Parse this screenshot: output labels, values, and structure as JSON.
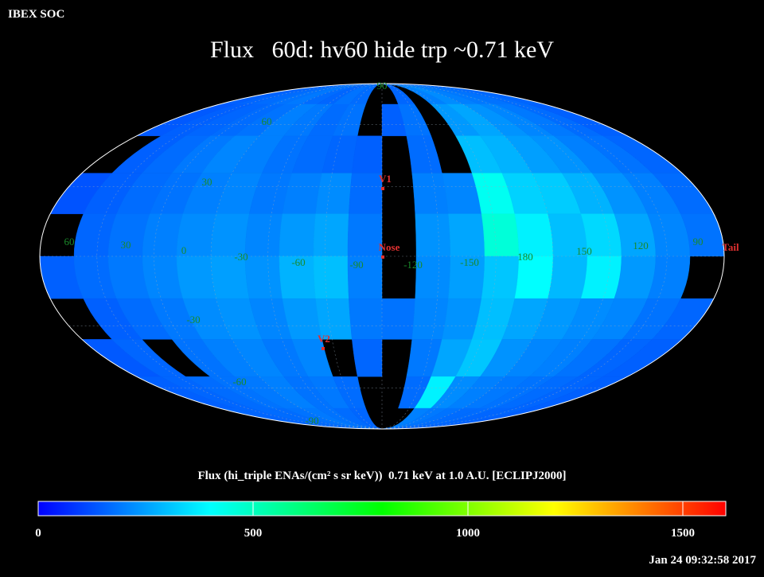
{
  "header": {
    "org": "IBEX SOC",
    "title": "Flux   60d: hv60 hide trp ~0.71 keV",
    "timestamp": "Jan 24 09:32:58 2017"
  },
  "map": {
    "cells": [
      [
        150,
        160,
        170,
        180,
        190,
        170,
        160,
        180,
        170,
        null,
        null,
        160,
        null,
        200,
        220,
        200,
        190,
        180,
        170,
        160
      ],
      [
        140,
        150,
        160,
        170,
        180,
        200,
        190,
        170,
        180,
        null,
        150,
        180,
        null,
        240,
        260,
        230,
        210,
        190,
        170,
        150
      ],
      [
        null,
        150,
        170,
        190,
        210,
        200,
        180,
        170,
        160,
        150,
        null,
        170,
        null,
        300,
        280,
        250,
        230,
        200,
        180,
        160
      ],
      [
        130,
        150,
        170,
        180,
        200,
        210,
        190,
        200,
        220,
        170,
        null,
        200,
        210,
        420,
        330,
        320,
        280,
        230,
        200,
        170
      ],
      [
        null,
        160,
        180,
        200,
        220,
        230,
        210,
        240,
        260,
        190,
        null,
        230,
        260,
        460,
        380,
        300,
        340,
        260,
        210,
        180
      ],
      [
        150,
        170,
        190,
        210,
        240,
        250,
        230,
        280,
        300,
        200,
        null,
        220,
        250,
        310,
        400,
        290,
        380,
        240,
        200,
        null
      ],
      [
        null,
        150,
        170,
        190,
        220,
        230,
        210,
        240,
        260,
        190,
        180,
        210,
        230,
        300,
        260,
        240,
        220,
        210,
        180,
        160
      ],
      [
        140,
        160,
        null,
        180,
        200,
        210,
        190,
        210,
        null,
        160,
        null,
        190,
        260,
        310,
        230,
        210,
        200,
        180,
        160,
        150
      ],
      [
        150,
        160,
        170,
        180,
        190,
        200,
        180,
        190,
        170,
        null,
        null,
        170,
        380,
        220,
        200,
        190,
        180,
        170,
        160,
        150
      ],
      [
        160,
        160,
        170,
        170,
        180,
        190,
        180,
        170,
        160,
        null,
        null,
        null,
        200,
        190,
        180,
        170,
        170,
        160,
        160,
        150
      ]
    ],
    "grid_labels": [
      "90",
      "60",
      "30",
      "60",
      "30",
      "0",
      "-30",
      "-60",
      "-90",
      "-120",
      "-150",
      "180",
      "150",
      "120",
      "90",
      "-30",
      "-60",
      "-90"
    ],
    "markers": [
      "V1",
      "Nose",
      "V2",
      "Tail"
    ]
  },
  "colorbar": {
    "caption": "Flux (hi_triple ENAs/(cm² s sr keV))  0.71 keV at 1.0 A.U. [ECLIPJ2000]",
    "clim": [
      0,
      1600
    ],
    "ticks": [
      0,
      500,
      1000,
      1500
    ],
    "colors": [
      "#0000ff",
      "#00ffff",
      "#00ff00",
      "#ffff00",
      "#ff0000"
    ]
  }
}
